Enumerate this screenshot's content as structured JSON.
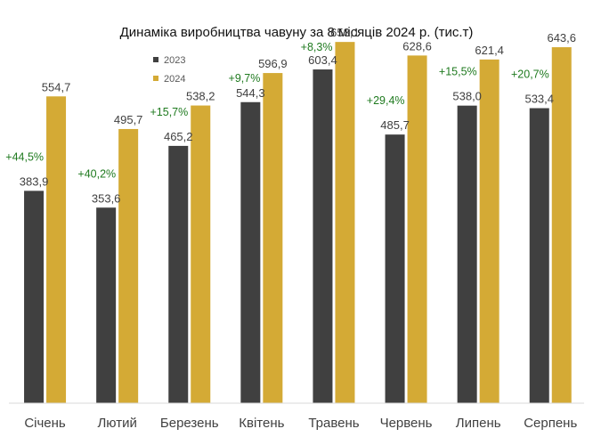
{
  "chart_data": {
    "type": "bar",
    "title": "Динаміка виробництва чавуну за 8 місяців 2024 р. (тис.т)",
    "categories": [
      "Січень",
      "Лютий",
      "Березень",
      "Квітень",
      "Травень",
      "Червень",
      "Липень",
      "Серпень"
    ],
    "series": [
      {
        "name": "2023",
        "color": "#404040",
        "values": [
          383.9,
          353.6,
          465.2,
          544.3,
          603.4,
          485.7,
          538.0,
          533.4
        ],
        "labels": [
          "383,9",
          "353,6",
          "465,2",
          "544,3",
          "603,4",
          "485,7",
          "538,0",
          "533,4"
        ]
      },
      {
        "name": "2024",
        "color": "#D4AA35",
        "values": [
          554.7,
          495.7,
          538.2,
          596.9,
          653.1,
          628.6,
          621.4,
          643.6
        ],
        "labels": [
          "554,7",
          "495,7",
          "538,2",
          "596,9",
          "653,1",
          "628,6",
          "621,4",
          "643,6"
        ]
      }
    ],
    "change_labels": [
      "+44,5%",
      "+40,2%",
      "+15,7%",
      "+9,7%",
      "+8,3%",
      "+29,4%",
      "+15,5%",
      "+20,7%"
    ],
    "change_color": "#1f7a1f",
    "ylim": [
      0,
      700
    ],
    "grid": false,
    "legend_position": "top-left"
  }
}
